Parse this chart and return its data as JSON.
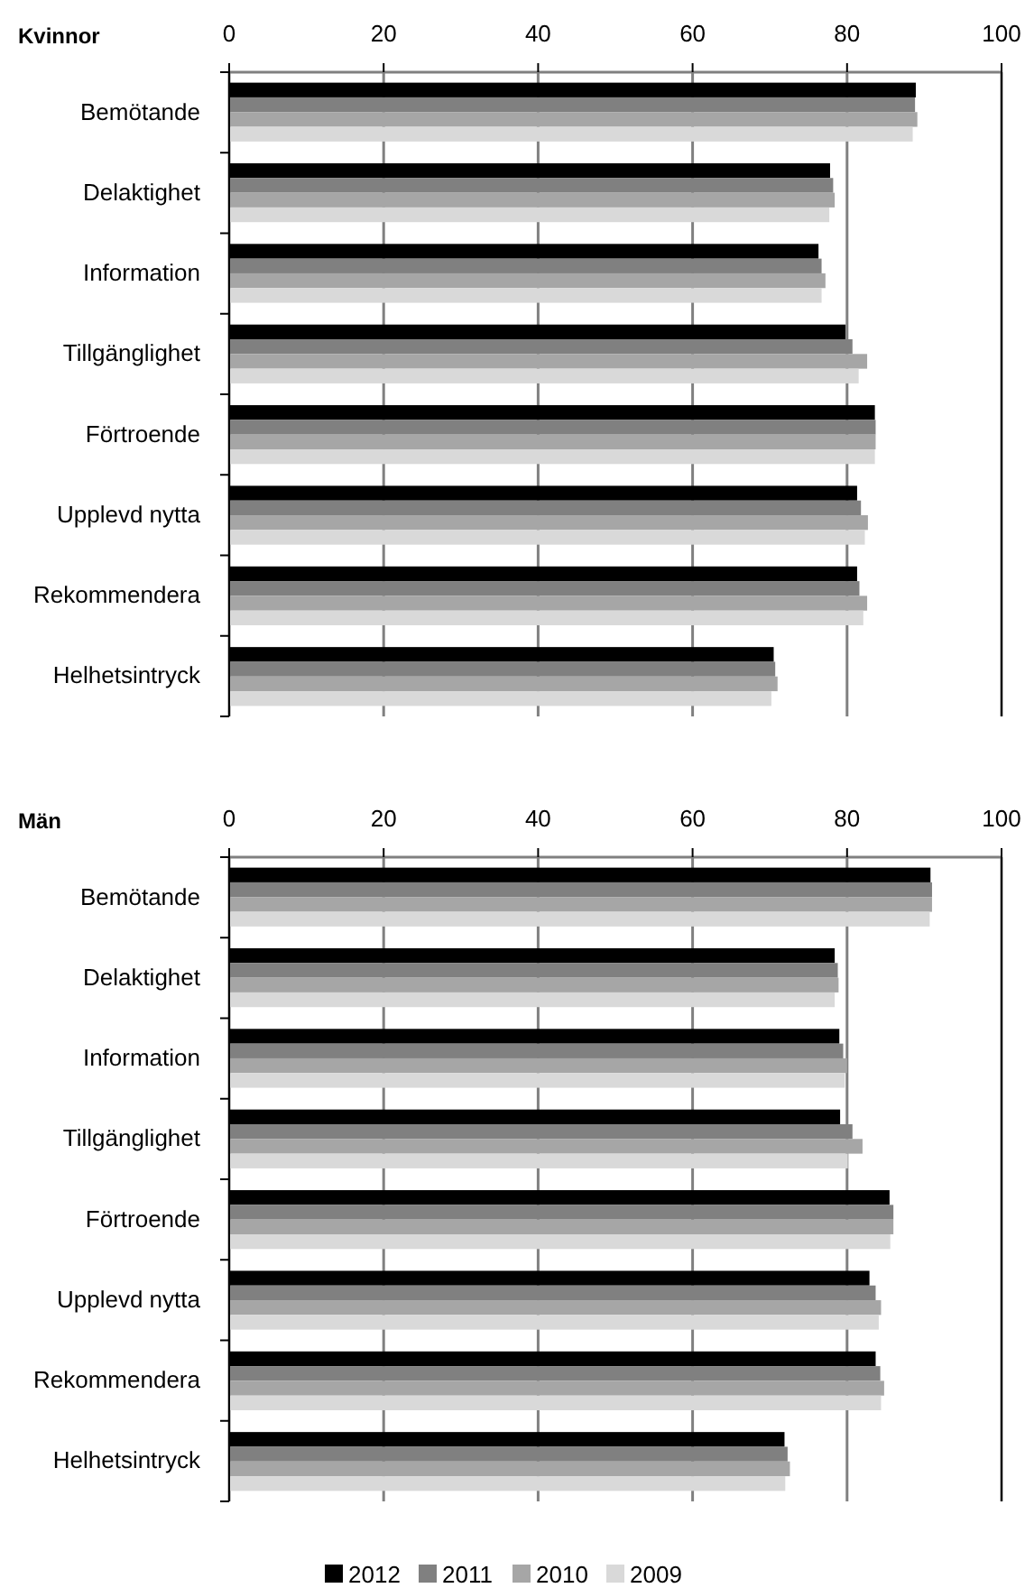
{
  "chart_data": [
    {
      "type": "bar",
      "title": "Kvinnor",
      "orientation": "horizontal",
      "categories": [
        "Bemötande",
        "Delaktighet",
        "Information",
        "Tillgänglighet",
        "Förtroende",
        "Upplevd nytta",
        "Rekommendera",
        "Helhetsintryck"
      ],
      "series": [
        {
          "color": "#000000",
          "values": [
            88.9,
            77.8,
            76.3,
            79.8,
            83.6,
            81.3,
            81.3,
            70.5
          ]
        },
        {
          "color": "#808080",
          "values": [
            88.8,
            78.2,
            76.7,
            80.7,
            83.7,
            81.8,
            81.6,
            70.7
          ]
        },
        {
          "color": "#a6a6a6",
          "values": [
            89.1,
            78.4,
            77.2,
            82.6,
            83.7,
            82.7,
            82.6,
            71.0
          ]
        },
        {
          "color": "#d9d9d9",
          "values": [
            88.5,
            77.7,
            76.7,
            81.5,
            83.6,
            82.3,
            82.1,
            70.2
          ]
        }
      ],
      "xlim": [
        0,
        100
      ],
      "xticks": [
        0,
        20,
        40,
        60,
        80,
        100
      ],
      "grid": "x",
      "legend": false
    },
    {
      "type": "bar",
      "title": "Män",
      "orientation": "horizontal",
      "categories": [
        "Bemötande",
        "Delaktighet",
        "Information",
        "Tillgänglighet",
        "Förtroende",
        "Upplevd nytta",
        "Rekommendera",
        "Helhetsintryck"
      ],
      "series": [
        {
          "name": "2012",
          "color": "#000000",
          "values": [
            90.8,
            78.4,
            79.0,
            79.1,
            85.5,
            82.9,
            83.7,
            71.9
          ]
        },
        {
          "name": "2011",
          "color": "#808080",
          "values": [
            91.0,
            78.8,
            79.5,
            80.7,
            86.0,
            83.7,
            84.3,
            72.3
          ]
        },
        {
          "name": "2010",
          "color": "#a6a6a6",
          "values": [
            91.0,
            78.9,
            80.0,
            82.0,
            86.0,
            84.4,
            84.8,
            72.6
          ]
        },
        {
          "name": "2009",
          "color": "#d9d9d9",
          "values": [
            90.7,
            78.4,
            79.7,
            80.1,
            85.6,
            84.1,
            84.4,
            72.0
          ]
        }
      ],
      "xlim": [
        0,
        100
      ],
      "xticks": [
        0,
        20,
        40,
        60,
        80,
        100
      ],
      "grid": "x",
      "legend": "bottom"
    }
  ]
}
